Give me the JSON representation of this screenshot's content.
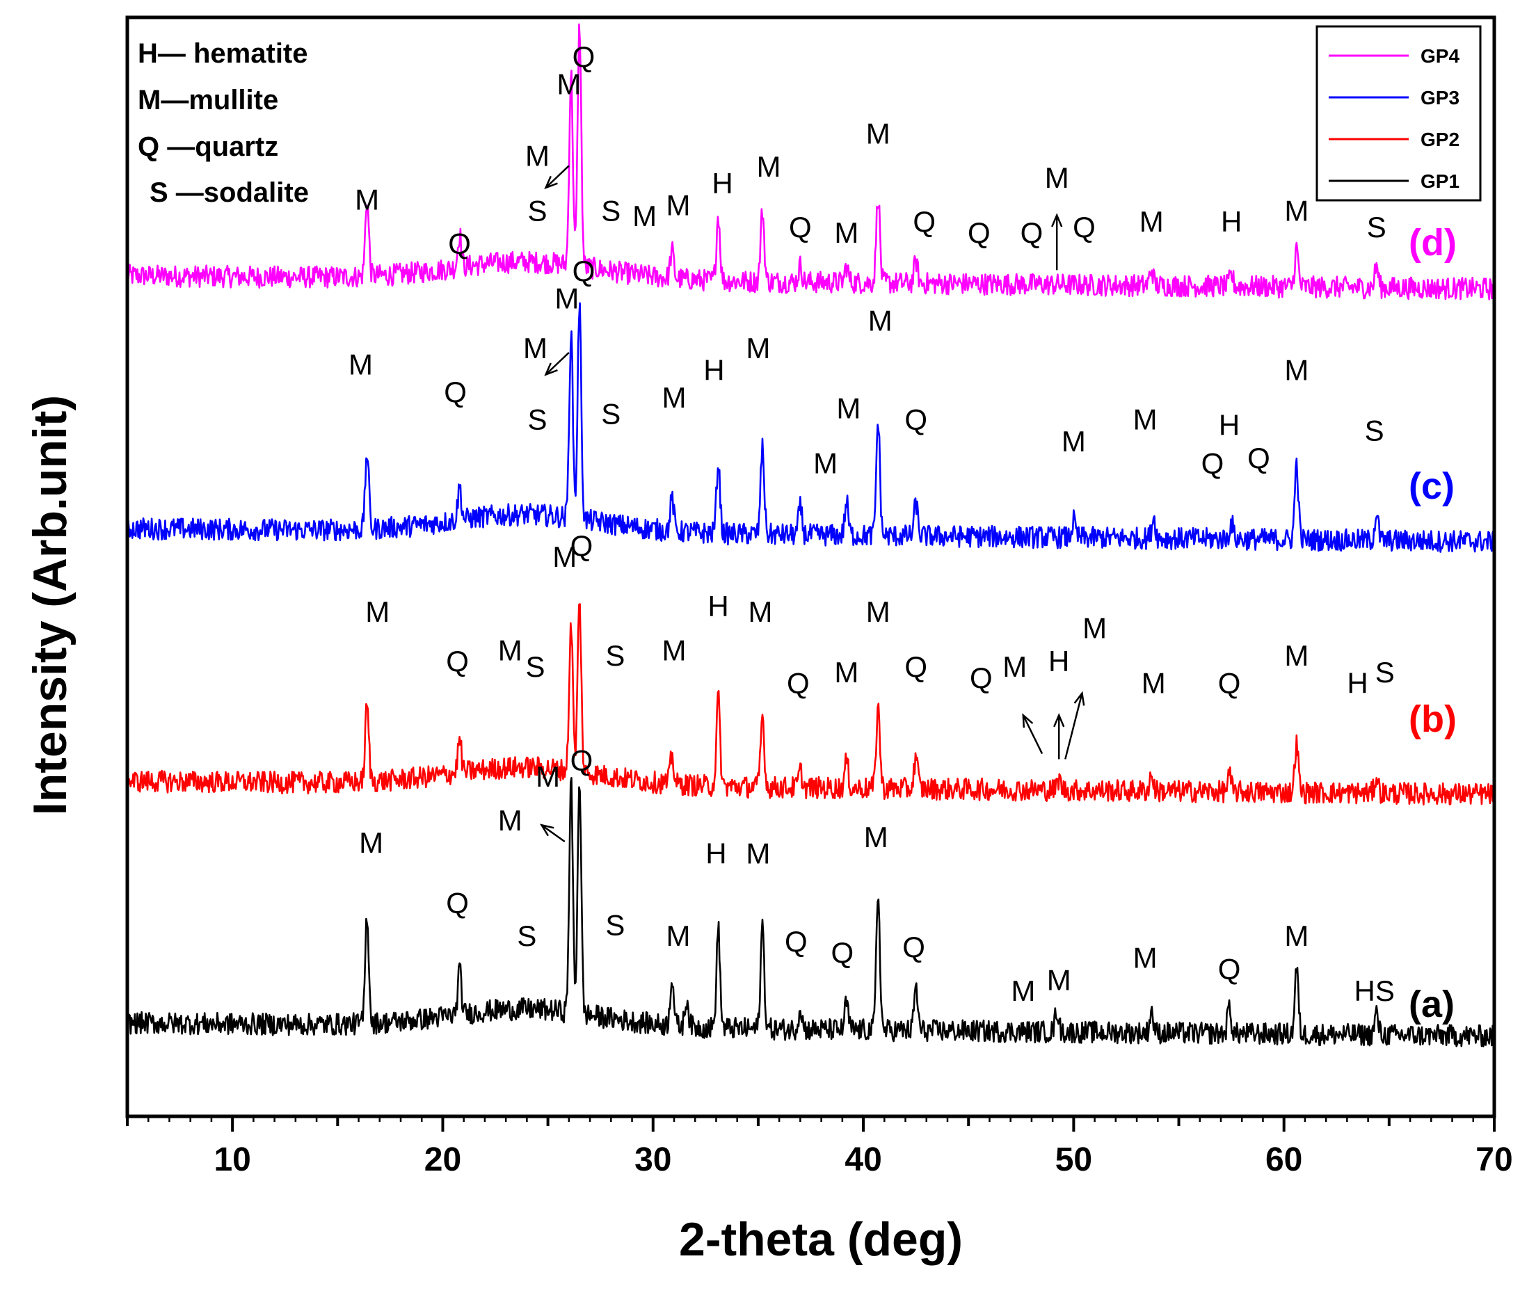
{
  "chart_data": {
    "type": "line",
    "title": "",
    "xlabel": "2-theta (deg)",
    "ylabel": "Intensity (Arb.unit)",
    "xlim": [
      5,
      70
    ],
    "ylim": [
      0,
      100
    ],
    "xticks": [
      10,
      20,
      30,
      40,
      50,
      60,
      70
    ],
    "grid": false,
    "legend_position": "top-right",
    "phase_legend": [
      {
        "code": "H",
        "text": "H— hematite"
      },
      {
        "code": "M",
        "text": "M—mullite"
      },
      {
        "code": "Q",
        "text": "Q —quartz"
      },
      {
        "code": "S",
        "text": "S —sodalite"
      }
    ],
    "series": [
      {
        "name": "GP4",
        "tag": "(d)",
        "color": "#ff00ff",
        "baseline": 76.5,
        "noise": 1.0,
        "peaks": [
          [
            16.4,
            7.0
          ],
          [
            20.8,
            3.0
          ],
          [
            26.1,
            17.5
          ],
          [
            26.5,
            22.0
          ],
          [
            30.9,
            2.5
          ],
          [
            33.1,
            6.0
          ],
          [
            35.2,
            6.5
          ],
          [
            37.0,
            1.5
          ],
          [
            39.2,
            1.5
          ],
          [
            40.7,
            8.0
          ],
          [
            42.5,
            2.0
          ],
          [
            53.7,
            1.5
          ],
          [
            57.5,
            1.0
          ],
          [
            60.6,
            3.5
          ],
          [
            64.4,
            2.0
          ]
        ],
        "labels": [
          [
            "M",
            16.4,
            82.5
          ],
          [
            "Q",
            20.8,
            78.5
          ],
          [
            "M",
            26.0,
            93.0
          ],
          [
            "Q",
            26.7,
            95.5
          ],
          [
            "M",
            24.5,
            86.5
          ],
          [
            "S",
            24.5,
            81.5
          ],
          [
            "S",
            28.0,
            81.5
          ],
          [
            "M",
            29.6,
            81.0
          ],
          [
            "M",
            31.2,
            82.0
          ],
          [
            "H",
            33.3,
            84.0
          ],
          [
            "M",
            35.5,
            85.5
          ],
          [
            "Q",
            37.0,
            80.0
          ],
          [
            "M",
            39.2,
            79.5
          ],
          [
            "M",
            40.7,
            88.5
          ],
          [
            "Q",
            42.9,
            80.5
          ],
          [
            "Q",
            45.5,
            79.5
          ],
          [
            "Q",
            48.0,
            79.5
          ],
          [
            "M",
            49.2,
            84.5
          ],
          [
            "Q",
            50.5,
            80.0
          ],
          [
            "M",
            53.7,
            80.5
          ],
          [
            "H",
            57.5,
            80.5
          ],
          [
            "M",
            60.6,
            81.5
          ],
          [
            "S",
            64.4,
            80.0
          ]
        ],
        "arrows": [
          [
            26.0,
            86.5,
            24.9,
            84.5
          ],
          [
            49.2,
            77.0,
            49.2,
            82.0
          ]
        ]
      },
      {
        "name": "GP3",
        "tag": "(c)",
        "color": "#0000ff",
        "baseline": 53.5,
        "noise": 1.0,
        "peaks": [
          [
            16.4,
            7.0
          ],
          [
            20.8,
            3.0
          ],
          [
            26.1,
            17.0
          ],
          [
            26.5,
            19.5
          ],
          [
            30.9,
            3.0
          ],
          [
            33.1,
            6.5
          ],
          [
            35.2,
            8.0
          ],
          [
            37.0,
            2.5
          ],
          [
            39.2,
            3.0
          ],
          [
            40.7,
            10.5
          ],
          [
            42.5,
            3.0
          ],
          [
            50.0,
            1.5
          ],
          [
            53.8,
            2.0
          ],
          [
            57.5,
            1.5
          ],
          [
            60.6,
            7.0
          ],
          [
            64.4,
            2.5
          ]
        ],
        "labels": [
          [
            "M",
            16.1,
            67.5
          ],
          [
            "Q",
            20.6,
            65.0
          ],
          [
            "M",
            25.9,
            73.5
          ],
          [
            "Q",
            26.7,
            76.0
          ],
          [
            "M",
            24.4,
            69.0
          ],
          [
            "S",
            24.5,
            62.5
          ],
          [
            "S",
            28.0,
            63.0
          ],
          [
            "M",
            31.0,
            64.5
          ],
          [
            "H",
            32.9,
            67.0
          ],
          [
            "M",
            35.0,
            69.0
          ],
          [
            "M",
            38.2,
            58.5
          ],
          [
            "M",
            39.3,
            63.5
          ],
          [
            "M",
            40.8,
            71.5
          ],
          [
            "Q",
            42.5,
            62.5
          ],
          [
            "M",
            50.0,
            60.5
          ],
          [
            "M",
            53.4,
            62.5
          ],
          [
            "Q",
            56.6,
            58.5
          ],
          [
            "H",
            57.4,
            62.0
          ],
          [
            "Q",
            58.8,
            59.0
          ],
          [
            "M",
            60.6,
            67.0
          ],
          [
            "S",
            64.3,
            61.5
          ]
        ],
        "arrows": [
          [
            26.0,
            69.5,
            24.9,
            67.5
          ]
        ]
      },
      {
        "name": "GP2",
        "tag": "(b)",
        "color": "#ff0000",
        "baseline": 30.5,
        "noise": 1.0,
        "peaks": [
          [
            16.4,
            7.0
          ],
          [
            20.8,
            3.0
          ],
          [
            26.1,
            13.5
          ],
          [
            26.5,
            15.5
          ],
          [
            30.9,
            2.5
          ],
          [
            33.1,
            8.0
          ],
          [
            35.2,
            6.5
          ],
          [
            37.0,
            1.5
          ],
          [
            39.2,
            2.5
          ],
          [
            40.7,
            7.5
          ],
          [
            42.5,
            3.0
          ],
          [
            49.3,
            1.0
          ],
          [
            53.7,
            1.5
          ],
          [
            57.4,
            1.5
          ],
          [
            60.6,
            4.5
          ],
          [
            64.4,
            1.5
          ]
        ],
        "labels": [
          [
            "M",
            16.9,
            45.0
          ],
          [
            "Q",
            20.7,
            40.5
          ],
          [
            "M",
            23.2,
            41.5
          ],
          [
            "S",
            24.4,
            40.0
          ],
          [
            "M",
            25.8,
            50.0
          ],
          [
            "Q",
            26.6,
            51.0
          ],
          [
            "S",
            28.2,
            41.0
          ],
          [
            "M",
            31.0,
            41.5
          ],
          [
            "H",
            33.1,
            45.5
          ],
          [
            "M",
            35.1,
            45.0
          ],
          [
            "Q",
            36.9,
            38.5
          ],
          [
            "M",
            39.2,
            39.5
          ],
          [
            "M",
            40.7,
            45.0
          ],
          [
            "Q",
            42.5,
            40.0
          ],
          [
            "Q",
            45.6,
            39.0
          ],
          [
            "M",
            47.2,
            40.0
          ],
          [
            "H",
            49.3,
            40.5
          ],
          [
            "M",
            51.0,
            43.5
          ],
          [
            "M",
            53.8,
            38.5
          ],
          [
            "Q",
            57.4,
            38.5
          ],
          [
            "M",
            60.6,
            41.0
          ],
          [
            "H",
            63.5,
            38.5
          ],
          [
            "S",
            64.8,
            39.5
          ]
        ],
        "arrows": [
          [
            48.5,
            33.0,
            47.6,
            36.5
          ],
          [
            49.3,
            32.5,
            49.3,
            36.5
          ],
          [
            49.6,
            32.5,
            50.4,
            38.5
          ]
        ]
      },
      {
        "name": "GP1",
        "tag": "(a)",
        "color": "#000000",
        "baseline": 8.5,
        "noise": 1.0,
        "peaks": [
          [
            16.4,
            10.0
          ],
          [
            20.8,
            4.0
          ],
          [
            26.1,
            21.0
          ],
          [
            26.5,
            21.5
          ],
          [
            30.9,
            4.5
          ],
          [
            31.6,
            2.5
          ],
          [
            33.1,
            9.0
          ],
          [
            35.2,
            9.5
          ],
          [
            37.0,
            2.0
          ],
          [
            39.2,
            2.5
          ],
          [
            40.7,
            12.5
          ],
          [
            42.5,
            4.0
          ],
          [
            49.2,
            2.0
          ],
          [
            53.7,
            2.0
          ],
          [
            57.4,
            2.5
          ],
          [
            60.6,
            6.0
          ],
          [
            64.4,
            2.0
          ]
        ],
        "labels": [
          [
            "M",
            16.6,
            24.0
          ],
          [
            "Q",
            20.7,
            18.5
          ],
          [
            "M",
            25.0,
            30.0
          ],
          [
            "M",
            23.2,
            26.0
          ],
          [
            "Q",
            26.6,
            31.5
          ],
          [
            "S",
            24.0,
            15.5
          ],
          [
            "S",
            28.2,
            16.5
          ],
          [
            "M",
            31.2,
            15.5
          ],
          [
            "H",
            33.0,
            23.0
          ],
          [
            "M",
            35.0,
            23.0
          ],
          [
            "Q",
            36.8,
            15.0
          ],
          [
            "Q",
            39.0,
            14.0
          ],
          [
            "M",
            40.6,
            24.5
          ],
          [
            "Q",
            42.4,
            14.5
          ],
          [
            "M",
            47.6,
            10.5
          ],
          [
            "M",
            49.3,
            11.5
          ],
          [
            "M",
            53.4,
            13.5
          ],
          [
            "Q",
            57.4,
            12.5
          ],
          [
            "M",
            60.6,
            15.5
          ],
          [
            "HS",
            64.3,
            10.5
          ]
        ],
        "arrows": [
          [
            25.8,
            25.0,
            24.7,
            26.5
          ]
        ]
      }
    ]
  }
}
